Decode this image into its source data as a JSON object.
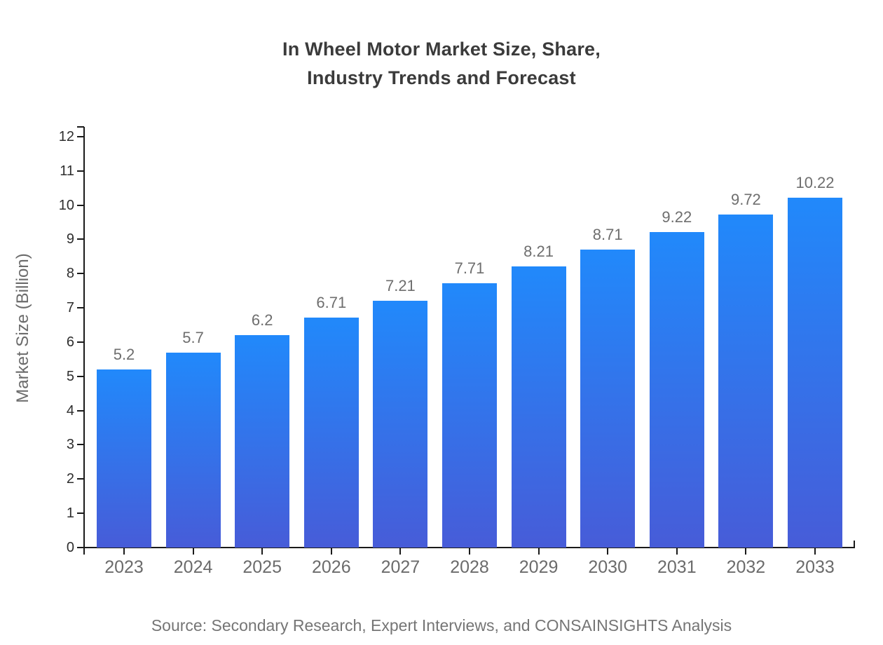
{
  "title": {
    "line1": "In Wheel Motor Market Size, Share,",
    "line2": "Industry Trends and Forecast"
  },
  "source": "Source: Secondary Research, Expert Interviews, and CONSAINSIGHTS Analysis",
  "chart_data": {
    "type": "bar",
    "title": "In Wheel Motor Market Size, Share, Industry Trends and Forecast",
    "categories": [
      "2023",
      "2024",
      "2025",
      "2026",
      "2027",
      "2028",
      "2029",
      "2030",
      "2031",
      "2032",
      "2033"
    ],
    "values": [
      5.2,
      5.7,
      6.2,
      6.71,
      7.21,
      7.71,
      8.21,
      8.71,
      9.22,
      9.72,
      10.22
    ],
    "value_labels": [
      "5.2",
      "5.7",
      "6.2",
      "6.71",
      "7.21",
      "7.71",
      "8.21",
      "8.71",
      "9.22",
      "9.72",
      "10.22"
    ],
    "xlabel": "",
    "ylabel": "Market Size (Billion)",
    "ylim": [
      0,
      12
    ],
    "ytick_step": 1,
    "ytick_labels": [
      "0",
      "1",
      "2",
      "3",
      "4",
      "5",
      "6",
      "7",
      "8",
      "9",
      "10",
      "11",
      "12"
    ],
    "grid": false,
    "legend": "none",
    "colors": {
      "bar_gradient_top": "#2189fb",
      "bar_gradient_bottom": "#475cd8",
      "axis": "#1a1a1a",
      "y_tick_label": "#2e2e2e",
      "x_tick_label": "#6b6b6b",
      "value_label": "#6e6e6e",
      "title": "#3b3b3b",
      "source": "#757575"
    }
  }
}
